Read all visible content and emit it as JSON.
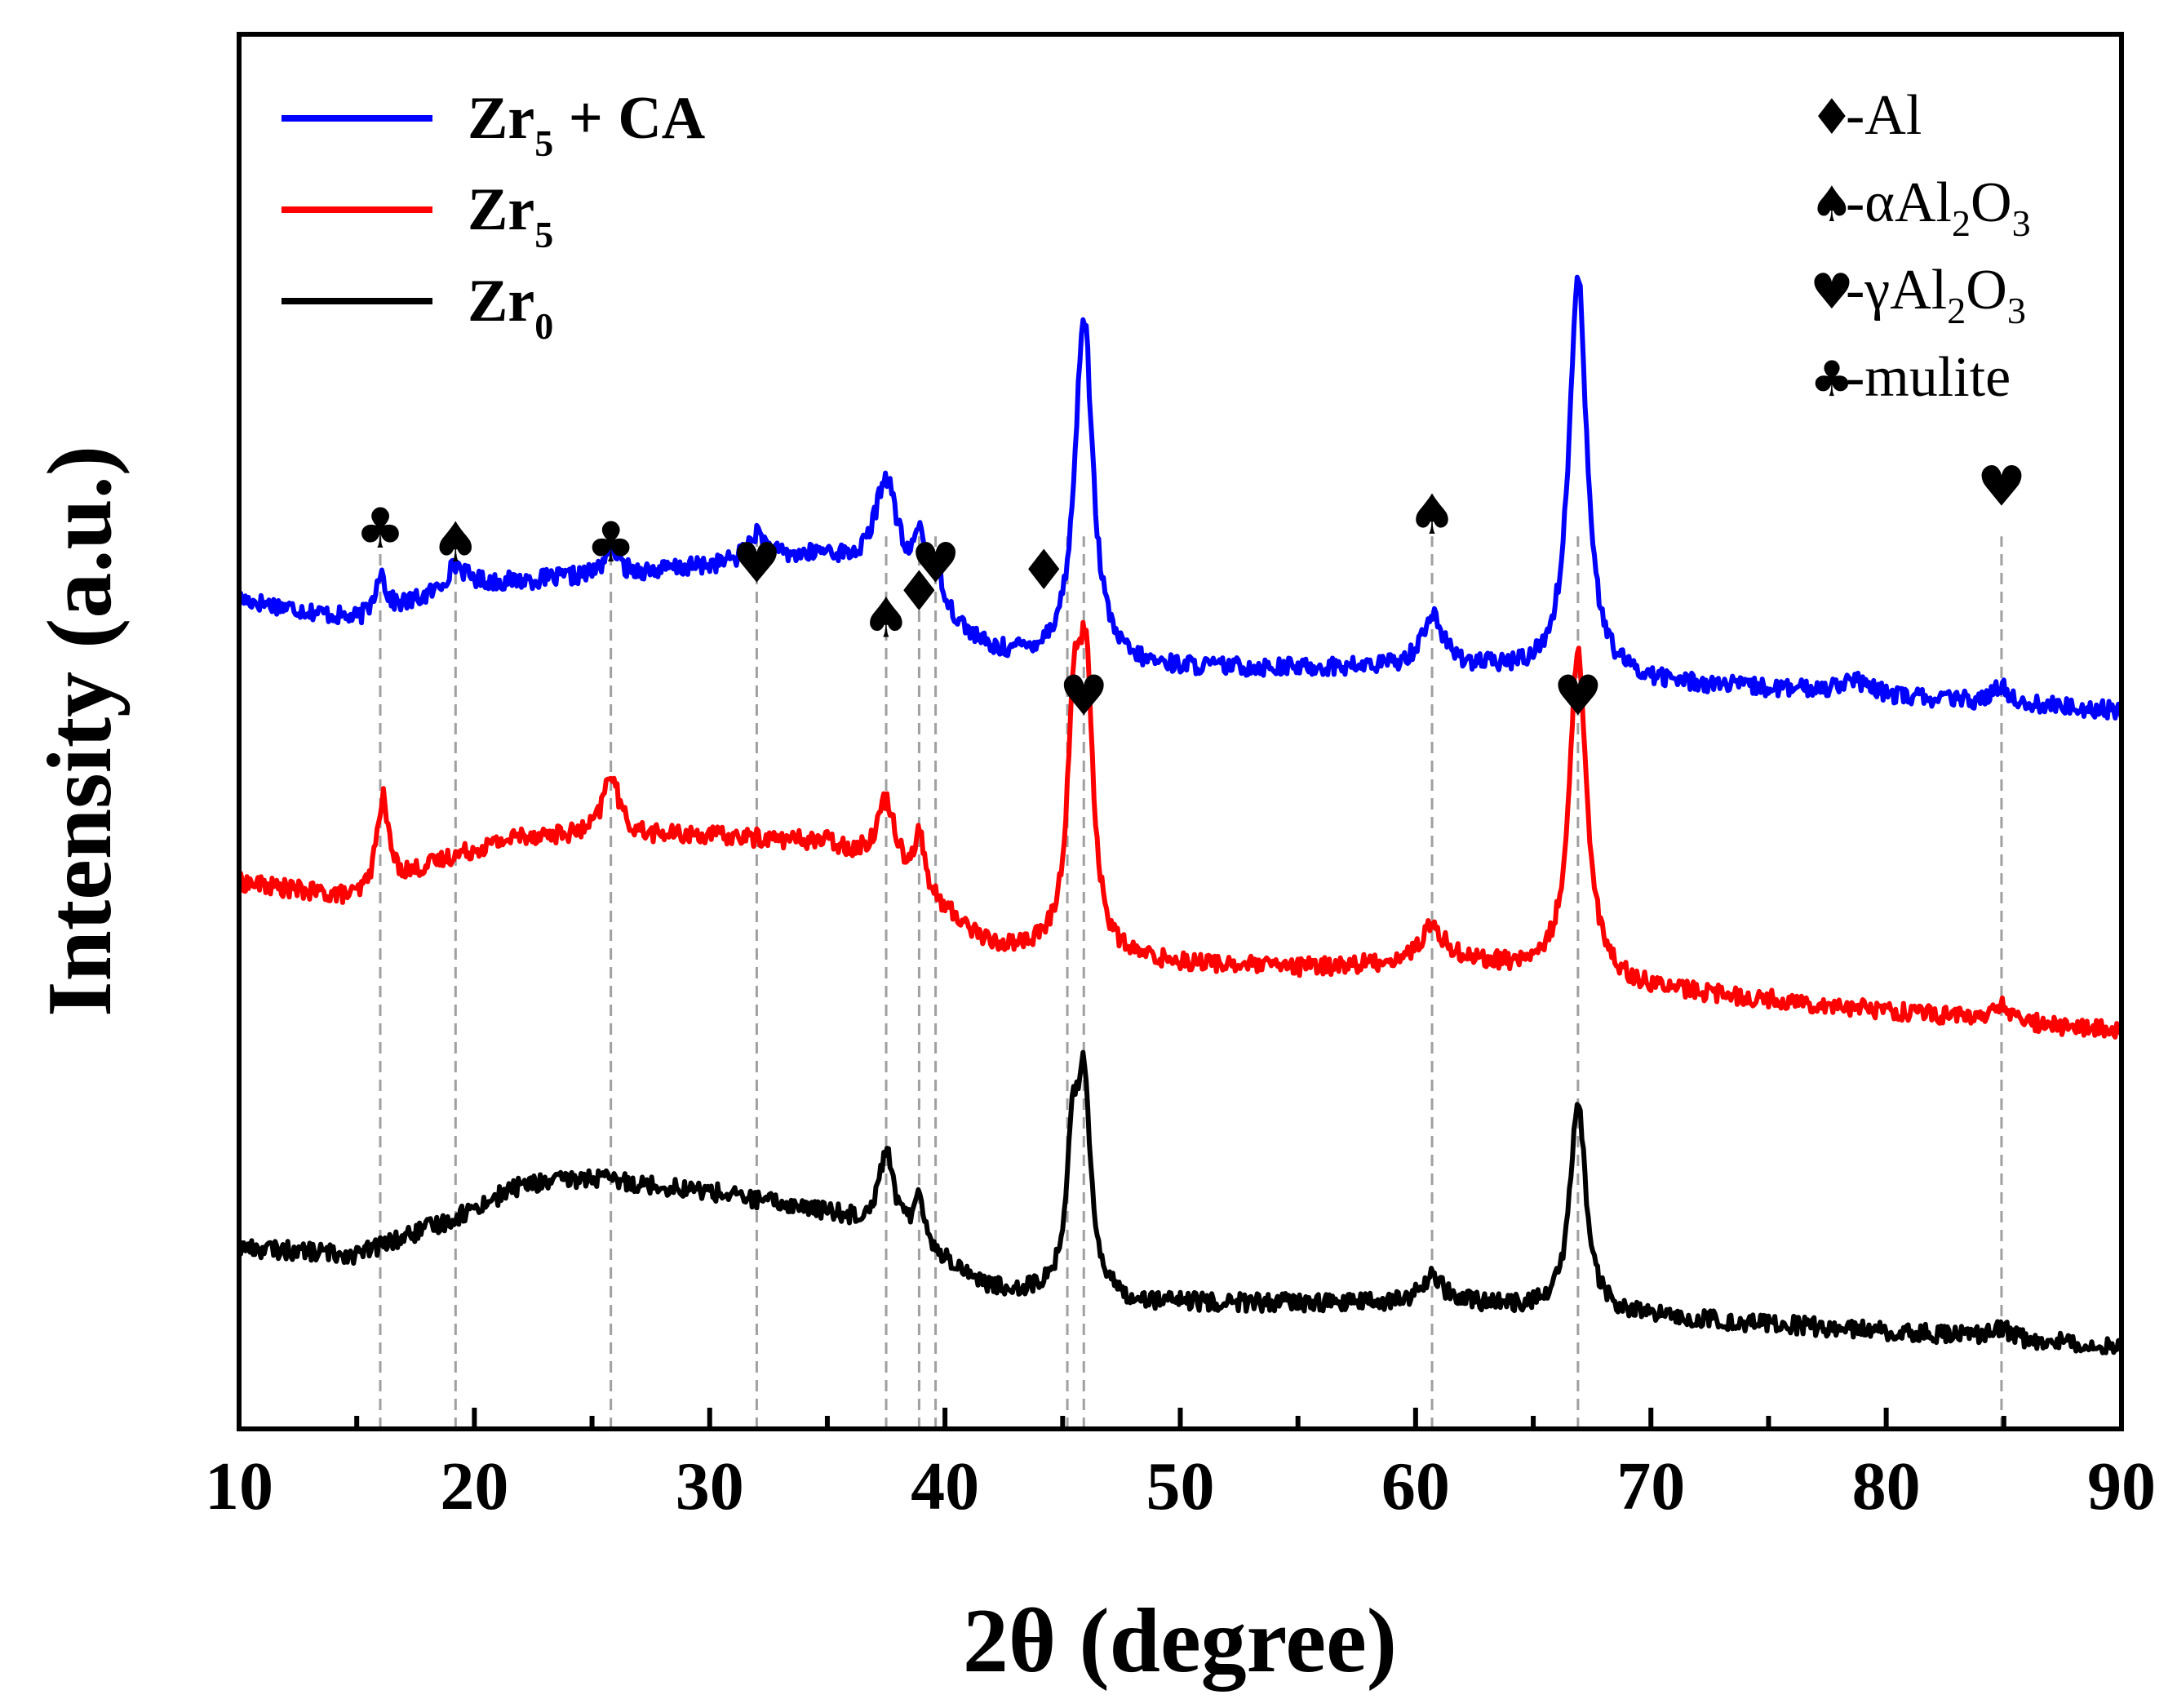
{
  "chart_data": {
    "type": "line",
    "title": "",
    "xlabel": "2θ (degree)",
    "ylabel": "Intensity (a.u.)",
    "xlim": [
      10,
      90
    ],
    "ylim": [
      0,
      1
    ],
    "x_ticks": [
      "10",
      "20",
      "30",
      "40",
      "50",
      "60",
      "70",
      "80",
      "90"
    ],
    "grid": false,
    "legend_position": "top-left",
    "series": [
      {
        "name": "Zr5 + CA",
        "label_main": "Zr",
        "label_sub": "5",
        "label_rest": " + CA",
        "color": "#0000ff",
        "baseline": [
          [
            10,
            0.595
          ],
          [
            15,
            0.58
          ],
          [
            20,
            0.605
          ],
          [
            28,
            0.615
          ],
          [
            35,
            0.625
          ],
          [
            38,
            0.6
          ],
          [
            42,
            0.555
          ],
          [
            48,
            0.545
          ],
          [
            55,
            0.545
          ],
          [
            62,
            0.545
          ],
          [
            70,
            0.535
          ],
          [
            80,
            0.525
          ],
          [
            90,
            0.515
          ]
        ],
        "peaks": [
          {
            "pos": 16.0,
            "height": 0.03,
            "width": 0.25
          },
          {
            "pos": 19.2,
            "height": 0.018,
            "width": 0.5
          },
          {
            "pos": 25.8,
            "height": 0.022,
            "width": 0.3
          },
          {
            "pos": 32.0,
            "height": 0.02,
            "width": 0.5
          },
          {
            "pos": 37.5,
            "height": 0.075,
            "width": 0.6
          },
          {
            "pos": 38.9,
            "height": 0.04,
            "width": 0.25
          },
          {
            "pos": 39.6,
            "height": 0.03,
            "width": 0.4
          },
          {
            "pos": 45.9,
            "height": 0.25,
            "width": 0.45
          },
          {
            "pos": 60.7,
            "height": 0.037,
            "width": 0.55
          },
          {
            "pos": 66.9,
            "height": 0.29,
            "width": 0.45
          },
          {
            "pos": 78.5,
            "height": 0.01,
            "width": 0.8
          },
          {
            "pos": 84.9,
            "height": 0.013,
            "width": 0.35
          }
        ]
      },
      {
        "name": "Zr5",
        "label_main": "Zr",
        "label_sub": "5",
        "label_rest": "",
        "color": "#ff0000",
        "baseline": [
          [
            10,
            0.392
          ],
          [
            15,
            0.38
          ],
          [
            19,
            0.41
          ],
          [
            22,
            0.425
          ],
          [
            30,
            0.425
          ],
          [
            35,
            0.42
          ],
          [
            38,
            0.395
          ],
          [
            42,
            0.345
          ],
          [
            48,
            0.335
          ],
          [
            55,
            0.33
          ],
          [
            62,
            0.335
          ],
          [
            70,
            0.315
          ],
          [
            80,
            0.3
          ],
          [
            90,
            0.285
          ]
        ],
        "peaks": [
          {
            "pos": 16.1,
            "height": 0.065,
            "width": 0.3
          },
          {
            "pos": 25.8,
            "height": 0.045,
            "width": 0.4
          },
          {
            "pos": 37.5,
            "height": 0.05,
            "width": 0.5
          },
          {
            "pos": 38.9,
            "height": 0.04,
            "width": 0.25
          },
          {
            "pos": 45.5,
            "height": 0.16,
            "width": 0.35
          },
          {
            "pos": 46.0,
            "height": 0.18,
            "width": 0.35
          },
          {
            "pos": 60.7,
            "height": 0.025,
            "width": 0.6
          },
          {
            "pos": 66.9,
            "height": 0.235,
            "width": 0.45
          },
          {
            "pos": 84.9,
            "height": 0.012,
            "width": 0.35
          }
        ]
      },
      {
        "name": "Zr0",
        "label_main": "Zr",
        "label_sub": "0",
        "label_rest": "",
        "color": "#000000",
        "baseline": [
          [
            10,
            0.13
          ],
          [
            15,
            0.125
          ],
          [
            19,
            0.15
          ],
          [
            22,
            0.175
          ],
          [
            25,
            0.18
          ],
          [
            30,
            0.17
          ],
          [
            35,
            0.155
          ],
          [
            38,
            0.14
          ],
          [
            42,
            0.1
          ],
          [
            48,
            0.09
          ],
          [
            55,
            0.09
          ],
          [
            62,
            0.09
          ],
          [
            70,
            0.08
          ],
          [
            80,
            0.07
          ],
          [
            90,
            0.06
          ]
        ],
        "peaks": [
          {
            "pos": 37.5,
            "height": 0.055,
            "width": 0.4
          },
          {
            "pos": 38.9,
            "height": 0.04,
            "width": 0.22
          },
          {
            "pos": 45.4,
            "height": 0.09,
            "width": 0.3
          },
          {
            "pos": 45.9,
            "height": 0.15,
            "width": 0.35
          },
          {
            "pos": 60.7,
            "height": 0.02,
            "width": 0.5
          },
          {
            "pos": 66.9,
            "height": 0.15,
            "width": 0.4
          },
          {
            "pos": 84.9,
            "height": 0.008,
            "width": 0.35
          }
        ]
      }
    ],
    "reference_lines": [
      16.0,
      19.2,
      25.8,
      32.0,
      37.5,
      38.9,
      39.6,
      45.2,
      45.9,
      60.7,
      66.9,
      84.9
    ],
    "phase_markers": [
      {
        "x": 16.0,
        "glyph": "♣",
        "phase": "mulite"
      },
      {
        "x": 19.2,
        "glyph": "♠",
        "phase": "αAl2O3"
      },
      {
        "x": 25.8,
        "glyph": "♣",
        "phase": "mulite"
      },
      {
        "x": 32.0,
        "glyph": "♥",
        "phase": "γAl2O3"
      },
      {
        "x": 37.5,
        "glyph": "♠",
        "phase": "αAl2O3"
      },
      {
        "x": 38.9,
        "glyph": "♦",
        "phase": "Al"
      },
      {
        "x": 39.6,
        "glyph": "♥",
        "phase": "γAl2O3"
      },
      {
        "x": 44.2,
        "glyph": "♦",
        "phase": "Al"
      },
      {
        "x": 45.9,
        "glyph": "♥",
        "phase": "γAl2O3"
      },
      {
        "x": 60.7,
        "glyph": "♠",
        "phase": "αAl2O3"
      },
      {
        "x": 66.9,
        "glyph": "♥",
        "phase": "γAl2O3"
      },
      {
        "x": 84.9,
        "glyph": "♥",
        "phase": "γAl2O3"
      }
    ],
    "phase_key": [
      {
        "glyph": "♦",
        "prefix": "-Al",
        "s1": "",
        "mid": "",
        "s2": ""
      },
      {
        "glyph": "♠",
        "prefix": "-αAl",
        "s1": "2",
        "mid": "O",
        "s2": "3"
      },
      {
        "glyph": "♥",
        "prefix": "-γAl",
        "s1": "2",
        "mid": "O",
        "s2": "3"
      },
      {
        "glyph": "♣",
        "prefix": "-mulite",
        "s1": "",
        "mid": "",
        "s2": ""
      }
    ]
  }
}
